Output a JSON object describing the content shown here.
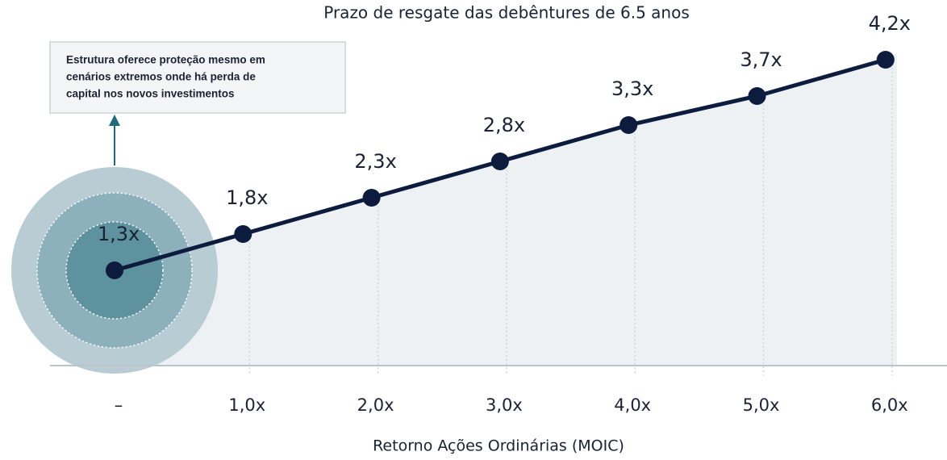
{
  "chart_data": {
    "type": "line",
    "title": "Prazo de resgate das debêntures de 6.5 anos",
    "x_label": "Retorno Ações Ordinárias (MOIC)",
    "annotation": [
      "Estrutura oferece proteção mesmo em",
      "cenários extremos onde há perda de",
      "capital nos novos investimentos"
    ],
    "categories": [
      "–",
      "1,0x",
      "2,0x",
      "3,0x",
      "4,0x",
      "5,0x",
      "6,0x"
    ],
    "values": [
      1.3,
      1.8,
      2.3,
      2.8,
      3.3,
      3.7,
      4.2
    ],
    "value_labels": [
      "1,3x",
      "1,8x",
      "2,3x",
      "2,8x",
      "3,3x",
      "3,7x",
      "4,2x"
    ],
    "color": "#0d1b3e",
    "ylim": [
      0,
      5
    ]
  }
}
